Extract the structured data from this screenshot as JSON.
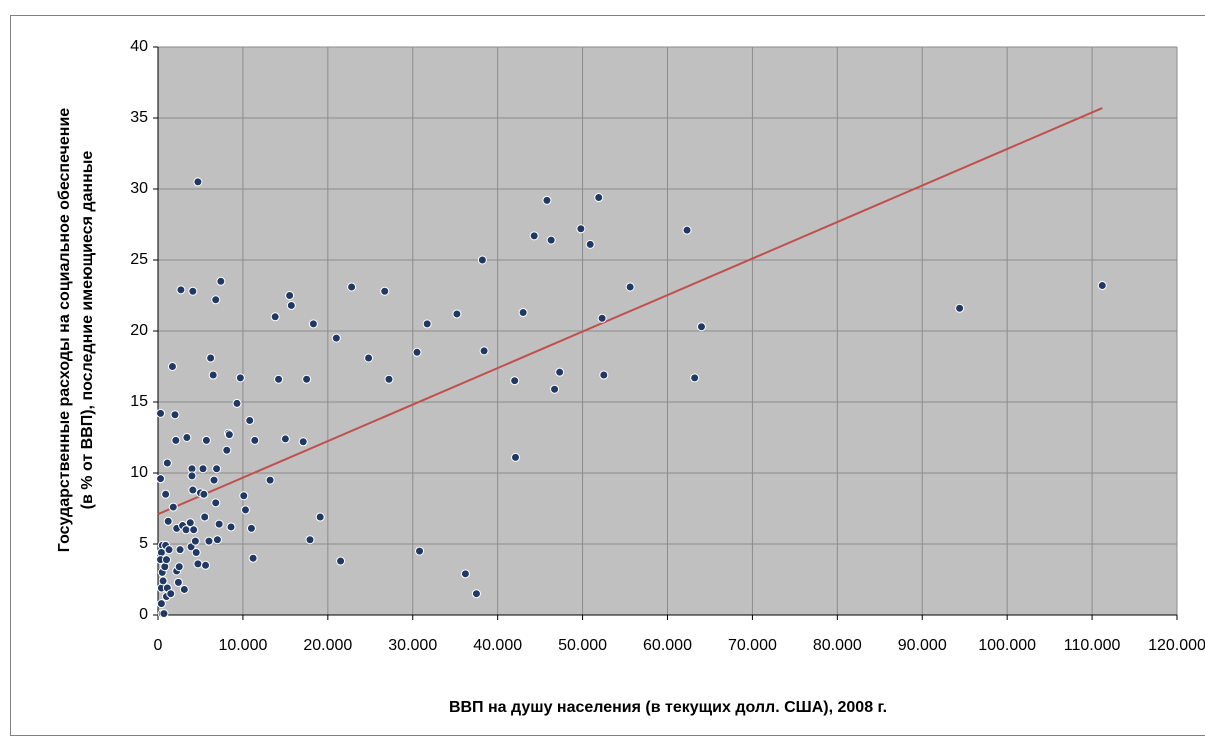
{
  "chart_data": {
    "type": "scatter",
    "x_label": "ВВП на душу населения (в текущих долл. США), 2008 г.",
    "y_label": [
      "Государственные расходы на социальное обеспечение",
      "(в % от ВВП), последние имеющиеся данные"
    ],
    "xlim": [
      0,
      120000
    ],
    "ylim": [
      0,
      40
    ],
    "xticks": [
      0,
      {
        "value": 10000,
        "label": "10.000"
      },
      {
        "value": 20000,
        "label": "20.000"
      },
      {
        "value": 30000,
        "label": "30.000"
      },
      {
        "value": 40000,
        "label": "40.000"
      },
      {
        "value": 50000,
        "label": "50.000"
      },
      {
        "value": 60000,
        "label": "60.000"
      },
      {
        "value": 70000,
        "label": "70.000"
      },
      {
        "value": 80000,
        "label": "80.000"
      },
      {
        "value": 90000,
        "label": "90.000"
      },
      {
        "value": 100000,
        "label": "100.000"
      },
      {
        "value": 110000,
        "label": "110.000"
      },
      {
        "value": 120000,
        "label": "120.000"
      }
    ],
    "yticks": [
      0,
      5,
      10,
      15,
      20,
      25,
      30,
      35,
      40
    ],
    "grid": true,
    "background": "#c0c0c0",
    "grid_color": "#8c8c8c",
    "series": [
      {
        "color": "#1f3864",
        "x": [
          300,
          300,
          500,
          400,
          300,
          500,
          400,
          600,
          400,
          500,
          700,
          1000,
          800,
          900,
          900,
          1100,
          1200,
          1300,
          1000,
          1100,
          1500,
          1700,
          1800,
          2000,
          2100,
          2200,
          2200,
          2500,
          2400,
          2600,
          2700,
          2900,
          3100,
          3300,
          3400,
          3800,
          3900,
          4000,
          4000,
          4100,
          4100,
          4200,
          4400,
          4500,
          4700,
          4700,
          5000,
          5300,
          5400,
          5500,
          5600,
          5700,
          6000,
          6200,
          6500,
          6600,
          6800,
          6900,
          6800,
          7000,
          7200,
          7400,
          8100,
          8300,
          8400,
          8600,
          9300,
          9700,
          10100,
          10300,
          10800,
          11000,
          11200,
          11400,
          13200,
          13800,
          14200,
          15000,
          15500,
          15700,
          17100,
          17500,
          17900,
          18300,
          19100,
          21000,
          21500,
          22800,
          24800,
          26700,
          27200,
          30500,
          30800,
          31700,
          35200,
          36200,
          37500,
          38200,
          38400,
          42000,
          42100,
          43000,
          44300,
          45800,
          46300,
          46700,
          47300,
          49800,
          50900,
          51900,
          52300,
          52500,
          55600,
          62300,
          63200,
          64000,
          94400,
          111200
        ],
        "values": [
          14.2,
          9.6,
          4.9,
          4.4,
          3.9,
          3.0,
          1.9,
          2.4,
          0.8,
          0.1,
          0.1,
          1.3,
          3.4,
          4.9,
          8.5,
          10.7,
          6.6,
          4.6,
          3.9,
          1.9,
          1.5,
          17.5,
          7.6,
          14.1,
          12.3,
          6.1,
          3.1,
          3.4,
          2.3,
          4.6,
          22.9,
          6.3,
          1.8,
          6.0,
          12.5,
          6.5,
          4.8,
          10.3,
          9.8,
          22.8,
          8.8,
          6.0,
          5.2,
          4.4,
          3.6,
          30.5,
          8.6,
          10.3,
          8.5,
          6.9,
          3.5,
          12.3,
          5.2,
          18.1,
          16.9,
          9.5,
          22.2,
          10.3,
          7.9,
          5.3,
          6.4,
          23.5,
          11.6,
          12.8,
          12.7,
          6.2,
          14.9,
          16.7,
          8.4,
          7.4,
          13.7,
          6.1,
          4.0,
          12.3,
          9.5,
          21.0,
          16.6,
          12.4,
          22.5,
          21.8,
          12.2,
          16.6,
          5.3,
          20.5,
          6.9,
          19.5,
          3.8,
          23.1,
          18.1,
          22.8,
          16.6,
          18.5,
          4.5,
          20.5,
          21.2,
          2.9,
          1.5,
          25.0,
          18.6,
          16.5,
          11.1,
          21.3,
          26.7,
          29.2,
          26.4,
          15.9,
          17.1,
          27.2,
          26.1,
          29.4,
          20.9,
          16.9,
          23.1,
          27.1,
          16.7,
          20.3,
          21.6,
          23.2
        ]
      }
    ],
    "trendline": {
      "color": "#c0504d",
      "x": [
        0,
        111200
      ],
      "values": [
        7.1,
        35.7
      ]
    }
  }
}
